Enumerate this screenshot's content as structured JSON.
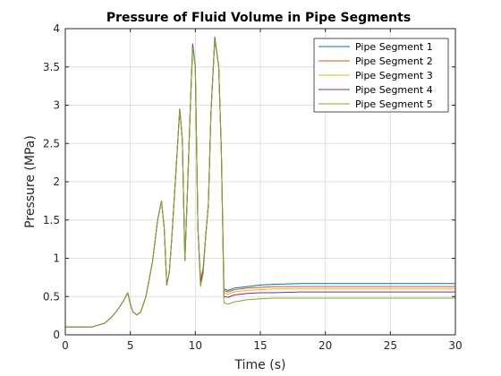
{
  "chart_data": {
    "type": "line",
    "title": "Pressure of Fluid Volume in Pipe Segments",
    "xlabel": "Time (s)",
    "ylabel": "Pressure (MPa)",
    "xlim": [
      0,
      30
    ],
    "ylim": [
      0,
      4
    ],
    "xticks": [
      0,
      5,
      10,
      15,
      20,
      25,
      30
    ],
    "yticks": [
      0,
      0.5,
      1,
      1.5,
      2,
      2.5,
      3,
      3.5,
      4
    ],
    "xtick_labels": [
      "0",
      "5",
      "10",
      "15",
      "20",
      "25",
      "30"
    ],
    "ytick_labels": [
      "0",
      "0.5",
      "1",
      "1.5",
      "2",
      "2.5",
      "3",
      "3.5",
      "4"
    ],
    "grid": true,
    "legend_position": "top-right",
    "x": [
      0,
      2,
      3,
      3.5,
      4,
      4.5,
      4.8,
      5.0,
      5.2,
      5.5,
      5.8,
      6.2,
      6.7,
      7.1,
      7.4,
      7.6,
      7.8,
      8.0,
      8.2,
      8.5,
      8.8,
      9.0,
      9.2,
      9.4,
      9.6,
      9.8,
      10.0,
      10.2,
      10.4,
      10.6,
      10.8,
      11.0,
      11.2,
      11.5,
      11.8,
      12.0,
      12.2,
      12.5,
      13.0,
      14.0,
      15.0,
      16.0,
      18.0,
      20.0,
      25.0,
      30.0
    ],
    "series": [
      {
        "name": "Pipe Segment 1",
        "color": "#0072bd",
        "values": [
          0.1,
          0.1,
          0.15,
          0.22,
          0.32,
          0.45,
          0.55,
          0.4,
          0.3,
          0.26,
          0.3,
          0.5,
          0.95,
          1.5,
          1.75,
          1.4,
          0.65,
          0.82,
          1.3,
          2.1,
          2.95,
          2.55,
          0.97,
          1.9,
          2.9,
          3.78,
          3.5,
          1.4,
          0.72,
          0.88,
          1.3,
          1.7,
          2.9,
          3.88,
          3.5,
          2.4,
          0.6,
          0.58,
          0.61,
          0.63,
          0.65,
          0.66,
          0.67,
          0.67,
          0.67,
          0.67
        ]
      },
      {
        "name": "Pipe Segment 2",
        "color": "#d95319",
        "values": [
          0.1,
          0.1,
          0.15,
          0.22,
          0.32,
          0.45,
          0.55,
          0.4,
          0.3,
          0.26,
          0.3,
          0.5,
          0.95,
          1.5,
          1.75,
          1.4,
          0.65,
          0.82,
          1.3,
          2.1,
          2.95,
          2.55,
          0.97,
          1.9,
          2.9,
          3.78,
          3.5,
          1.4,
          0.72,
          0.88,
          1.3,
          1.7,
          2.9,
          3.88,
          3.5,
          2.4,
          0.58,
          0.56,
          0.59,
          0.61,
          0.62,
          0.63,
          0.63,
          0.63,
          0.63,
          0.63
        ]
      },
      {
        "name": "Pipe Segment 3",
        "color": "#edb120",
        "values": [
          0.1,
          0.1,
          0.15,
          0.22,
          0.32,
          0.45,
          0.55,
          0.4,
          0.3,
          0.26,
          0.3,
          0.5,
          0.95,
          1.5,
          1.75,
          1.4,
          0.65,
          0.82,
          1.3,
          2.1,
          2.95,
          2.55,
          0.97,
          1.9,
          2.9,
          3.8,
          3.5,
          1.4,
          0.72,
          0.88,
          1.3,
          1.7,
          2.9,
          3.9,
          3.5,
          2.4,
          0.55,
          0.53,
          0.56,
          0.58,
          0.59,
          0.6,
          0.6,
          0.6,
          0.6,
          0.6
        ]
      },
      {
        "name": "Pipe Segment 4",
        "color": "#7e2f8e",
        "values": [
          0.1,
          0.1,
          0.15,
          0.22,
          0.32,
          0.45,
          0.55,
          0.4,
          0.3,
          0.26,
          0.3,
          0.5,
          0.95,
          1.5,
          1.75,
          1.4,
          0.65,
          0.82,
          1.3,
          2.1,
          2.95,
          2.55,
          0.97,
          1.9,
          2.9,
          3.8,
          3.5,
          1.4,
          0.68,
          0.85,
          1.3,
          1.7,
          2.9,
          3.88,
          3.5,
          2.4,
          0.5,
          0.49,
          0.52,
          0.54,
          0.55,
          0.55,
          0.56,
          0.56,
          0.56,
          0.56
        ]
      },
      {
        "name": "Pipe Segment 5",
        "color": "#77ac30",
        "values": [
          0.1,
          0.1,
          0.15,
          0.22,
          0.32,
          0.45,
          0.55,
          0.4,
          0.3,
          0.26,
          0.3,
          0.5,
          0.95,
          1.5,
          1.75,
          1.4,
          0.65,
          0.82,
          1.3,
          2.1,
          2.95,
          2.55,
          0.97,
          1.9,
          2.9,
          3.75,
          3.5,
          1.4,
          0.63,
          0.8,
          1.3,
          1.7,
          2.9,
          3.85,
          3.5,
          2.4,
          0.42,
          0.4,
          0.43,
          0.46,
          0.47,
          0.48,
          0.48,
          0.48,
          0.48,
          0.48
        ]
      }
    ]
  }
}
